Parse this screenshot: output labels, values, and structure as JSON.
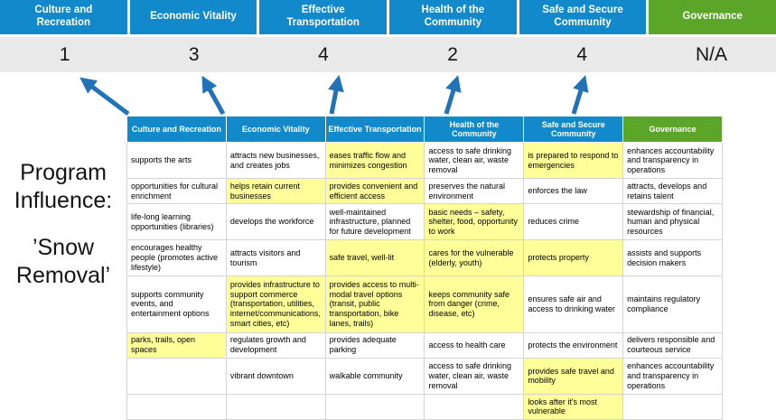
{
  "program_label": {
    "line1": "Program Influence:",
    "line2": "’Snow Removal’"
  },
  "top": {
    "columns": [
      {
        "label": "Culture and Recreation",
        "score": "1"
      },
      {
        "label": "Economic Vitality",
        "score": "3"
      },
      {
        "label": "Effective Transportation",
        "score": "4"
      },
      {
        "label": "Health of the Community",
        "score": "2"
      },
      {
        "label": "Safe and Secure Community",
        "score": "4"
      },
      {
        "label": "Governance",
        "score": "N/A"
      }
    ]
  },
  "colors": {
    "header_blue": "#1289CB",
    "governance_green": "#5BA629",
    "highlight_yellow": "#FFFF99",
    "score_strip_gray": "#E9E9E9",
    "arrow_blue": "#2173B8"
  },
  "table": {
    "headers": [
      {
        "label": "Culture and Recreation",
        "variant": "blue"
      },
      {
        "label": "Economic Vitality",
        "variant": "blue"
      },
      {
        "label": "Effective Transportation",
        "variant": "blue"
      },
      {
        "label": "Health of the Community",
        "variant": "blue"
      },
      {
        "label": "Safe and Secure Community",
        "variant": "blue"
      },
      {
        "label": "Governance",
        "variant": "green"
      }
    ],
    "rows": [
      [
        {
          "t": "supports the arts",
          "h": false
        },
        {
          "t": "attracts new businesses, and creates jobs",
          "h": false
        },
        {
          "t": "eases traffic flow and minimizes congestion",
          "h": true
        },
        {
          "t": "access to safe drinking water, clean air, waste removal",
          "h": false
        },
        {
          "t": "is prepared to respond to emergencies",
          "h": true
        },
        {
          "t": "enhances accountability and transparency in operations",
          "h": false
        }
      ],
      [
        {
          "t": "opportunities for cultural enrichment",
          "h": false
        },
        {
          "t": "helps retain current businesses",
          "h": true
        },
        {
          "t": "provides convenient and efficient access",
          "h": true
        },
        {
          "t": "preserves the natural environment",
          "h": false
        },
        {
          "t": "enforces the law",
          "h": false
        },
        {
          "t": "attracts, develops and retains talent",
          "h": false
        }
      ],
      [
        {
          "t": "life-long learning opportunities (libraries)",
          "h": false
        },
        {
          "t": "develops the workforce",
          "h": false
        },
        {
          "t": "well-maintained infrastructure, planned for future development",
          "h": false
        },
        {
          "t": "basic needs – safety, shelter, food, opportunity to work",
          "h": true
        },
        {
          "t": "reduces crime",
          "h": false
        },
        {
          "t": "stewardship of financial, human and physical resources",
          "h": false
        }
      ],
      [
        {
          "t": "encourages healthy people (promotes active lifestyle)",
          "h": false
        },
        {
          "t": "attracts visitors and tourism",
          "h": false
        },
        {
          "t": "safe travel, well-lit",
          "h": true
        },
        {
          "t": "cares for the vulnerable (elderly, youth)",
          "h": true
        },
        {
          "t": "protects property",
          "h": true
        },
        {
          "t": "assists and supports decision makers",
          "h": false
        }
      ],
      [
        {
          "t": "supports community events, and entertainment options",
          "h": false
        },
        {
          "t": "provides infrastructure to support commerce (transportation, utilities, internet/communications, smart cities, etc)",
          "h": true
        },
        {
          "t": "provides access to multi-modal travel options (transit, public transportation, bike lanes, trails)",
          "h": true
        },
        {
          "t": "keeps community safe from danger (crime, disease, etc)",
          "h": true
        },
        {
          "t": "ensures safe air and access to drinking water",
          "h": false
        },
        {
          "t": "maintains regulatory compliance",
          "h": false
        }
      ],
      [
        {
          "t": "parks, trails, open spaces",
          "h": true
        },
        {
          "t": "regulates growth and development",
          "h": false
        },
        {
          "t": "provides adequate parking",
          "h": false
        },
        {
          "t": "access to health care",
          "h": false
        },
        {
          "t": "protects the environment",
          "h": false
        },
        {
          "t": "delivers responsible and courteous service",
          "h": false
        }
      ],
      [
        {
          "t": "",
          "h": false
        },
        {
          "t": "vibrant downtown",
          "h": false
        },
        {
          "t": "walkable community",
          "h": false
        },
        {
          "t": "access to safe drinking water, clean air, waste removal",
          "h": false
        },
        {
          "t": "provides safe travel and mobility",
          "h": true
        },
        {
          "t": "enhances accountability and transparency in operations",
          "h": false
        }
      ],
      [
        {
          "t": "",
          "h": false
        },
        {
          "t": "",
          "h": false
        },
        {
          "t": "",
          "h": false
        },
        {
          "t": "",
          "h": false
        },
        {
          "t": "looks after it's most vulnerable",
          "h": true
        },
        {
          "t": "",
          "h": false
        }
      ]
    ]
  }
}
